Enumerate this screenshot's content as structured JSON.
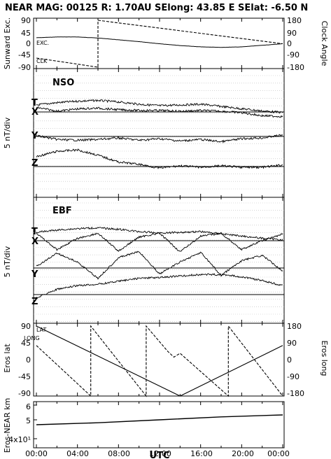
{
  "header": "NEAR MAG: 00125  R: 1.70AU  SElong:   43.85 E  SElat:   -6.50 N",
  "x_axis": {
    "label": "UTC",
    "ticks": [
      "00:00",
      "04:00",
      "08:00",
      "12:00",
      "16:00",
      "20:00",
      "00:00"
    ]
  },
  "panels": {
    "p1": {
      "left_label": "Sunward Exc.",
      "right_label": "Clock Angle",
      "left_ticks": [
        "90",
        "45",
        "0",
        "-45",
        "-90"
      ],
      "right_ticks": [
        "180",
        "90",
        "0",
        "-90",
        "-180"
      ],
      "key_exc": "EXC.",
      "key_clk": "CLK"
    },
    "p2": {
      "title": "NSO",
      "scale_label": "5 nT/div",
      "comp_t": "T",
      "comp_x": "X",
      "comp_y": "Y",
      "comp_z": "Z"
    },
    "p3": {
      "title": "EBF",
      "scale_label": "5 nT/div",
      "comp_t": "T",
      "comp_x": "X",
      "comp_y": "Y",
      "comp_z": "Z"
    },
    "p4": {
      "left_label": "Eros lat",
      "right_label": "Eros long",
      "left_ticks": [
        "90",
        "45",
        "0",
        "-45",
        "-90"
      ],
      "right_ticks": [
        "180",
        "90",
        "0",
        "-90",
        "-180"
      ],
      "key_lat": "LAT",
      "key_long": "LONG"
    },
    "p5": {
      "left_label": "Eros-NEAR km",
      "ticks": [
        "6",
        "5",
        "4x10¹"
      ]
    }
  },
  "chart_data": [
    {
      "type": "line",
      "panel": "Sunward Exc. / Clock Angle",
      "x_unit": "hours UTC",
      "ylim": [
        -90,
        90
      ],
      "y2lim": [
        -180,
        180
      ],
      "series": [
        {
          "name": "EXC.",
          "axis": "left",
          "style": "solid",
          "x": [
            0,
            2,
            4,
            6,
            8,
            10,
            12,
            14,
            16,
            18,
            20,
            22,
            24
          ],
          "y": [
            23,
            26,
            26,
            22,
            15,
            8,
            0,
            -7,
            -12,
            -14,
            -12,
            -6,
            0
          ]
        },
        {
          "name": "CLK",
          "axis": "right",
          "style": "dashed",
          "x": [
            0,
            6,
            6,
            24
          ],
          "y": [
            -110,
            -180,
            180,
            0
          ]
        }
      ]
    },
    {
      "type": "line",
      "panel": "NSO",
      "scale": "5 nT/div",
      "x_unit": "hours UTC",
      "series": [
        {
          "name": "T",
          "x": [
            0,
            2,
            4,
            6,
            8,
            10,
            12,
            14,
            16,
            18,
            20,
            22,
            24
          ],
          "y": [
            0,
            0.3,
            0.5,
            0.6,
            0.4,
            0.1,
            -0.1,
            0.0,
            0.1,
            -0.2,
            -0.5,
            -0.8,
            -1.0
          ]
        },
        {
          "name": "X",
          "x": [
            0,
            2,
            4,
            6,
            8,
            10,
            12,
            14,
            16,
            18,
            20,
            22,
            24
          ],
          "y": [
            0.6,
            0.1,
            0.4,
            0.5,
            0.3,
            0.2,
            0.2,
            0.1,
            0.2,
            0.1,
            -0.1,
            -0.5,
            -0.6
          ]
        },
        {
          "name": "Y",
          "x": [
            0,
            2,
            4,
            6,
            8,
            10,
            12,
            14,
            16,
            18,
            20,
            22,
            24
          ],
          "y": [
            0.1,
            -0.4,
            -0.5,
            -0.4,
            -0.2,
            -0.5,
            -0.3,
            -0.6,
            -0.4,
            -0.7,
            -0.3,
            -0.2,
            0.2
          ]
        },
        {
          "name": "Z",
          "x": [
            0,
            2,
            4,
            6,
            8,
            10,
            12,
            14,
            16,
            18,
            20,
            22,
            24
          ],
          "y": [
            1.3,
            2.0,
            2.2,
            1.5,
            0.6,
            0.3,
            -0.2,
            0.1,
            -0.1,
            0.1,
            -0.1,
            -0.1,
            0.2
          ]
        }
      ]
    },
    {
      "type": "line",
      "panel": "EBF",
      "scale": "5 nT/div",
      "x_unit": "hours UTC",
      "series": [
        {
          "name": "T",
          "x": [
            0,
            2,
            4,
            6,
            8,
            10,
            12,
            14,
            16,
            18,
            20,
            22,
            24
          ],
          "y": [
            0,
            0.3,
            0.5,
            0.6,
            0.4,
            0.1,
            -0.1,
            0.0,
            0.1,
            -0.2,
            -0.5,
            -0.8,
            -1.0
          ]
        },
        {
          "name": "X",
          "x": [
            0,
            2,
            4,
            6,
            8,
            10,
            12,
            14,
            16,
            18,
            20,
            22,
            24
          ],
          "y": [
            1.0,
            -1.2,
            0.3,
            1.0,
            -1.4,
            0.5,
            1.0,
            -1.5,
            0.6,
            1.0,
            -1.2,
            0.0,
            0.9
          ]
        },
        {
          "name": "Y",
          "x": [
            0,
            2,
            4,
            6,
            8,
            10,
            12,
            14,
            16,
            18,
            20,
            22,
            24
          ],
          "y": [
            0.2,
            2.0,
            0.8,
            -1.4,
            1.4,
            2.2,
            -0.8,
            0.8,
            2.1,
            -1.0,
            1.0,
            1.7,
            -0.4
          ]
        },
        {
          "name": "Z",
          "x": [
            0,
            2,
            4,
            6,
            8,
            10,
            12,
            14,
            16,
            18,
            20,
            22,
            24
          ],
          "y": [
            -0.4,
            0.7,
            1.2,
            1.4,
            1.8,
            2.2,
            2.3,
            2.5,
            2.7,
            2.7,
            2.4,
            1.9,
            1.2
          ]
        }
      ]
    },
    {
      "type": "line",
      "panel": "Eros lat / Eros long",
      "x_unit": "hours UTC",
      "ylim": [
        -90,
        90
      ],
      "y2lim": [
        -180,
        180
      ],
      "series": [
        {
          "name": "LAT",
          "axis": "left",
          "style": "solid",
          "x": [
            0,
            14,
            24
          ],
          "y": [
            90,
            -90,
            40
          ]
        },
        {
          "name": "LONG",
          "axis": "right",
          "style": "dashed",
          "x": [
            0,
            5.3,
            5.3,
            10.7,
            10.7,
            12.8,
            13.4,
            14.0,
            18.7,
            18.7,
            24
          ],
          "y": [
            80,
            -180,
            180,
            -180,
            180,
            50,
            20,
            40,
            -180,
            180,
            -180
          ]
        }
      ]
    },
    {
      "type": "line",
      "panel": "Eros-NEAR km",
      "x_unit": "hours UTC",
      "log_scale": true,
      "series": [
        {
          "name": "Eros-NEAR km",
          "x": [
            0,
            6,
            12,
            18,
            24
          ],
          "y": [
            49.5,
            49.7,
            50.0,
            50.3,
            50.5
          ]
        }
      ]
    }
  ]
}
